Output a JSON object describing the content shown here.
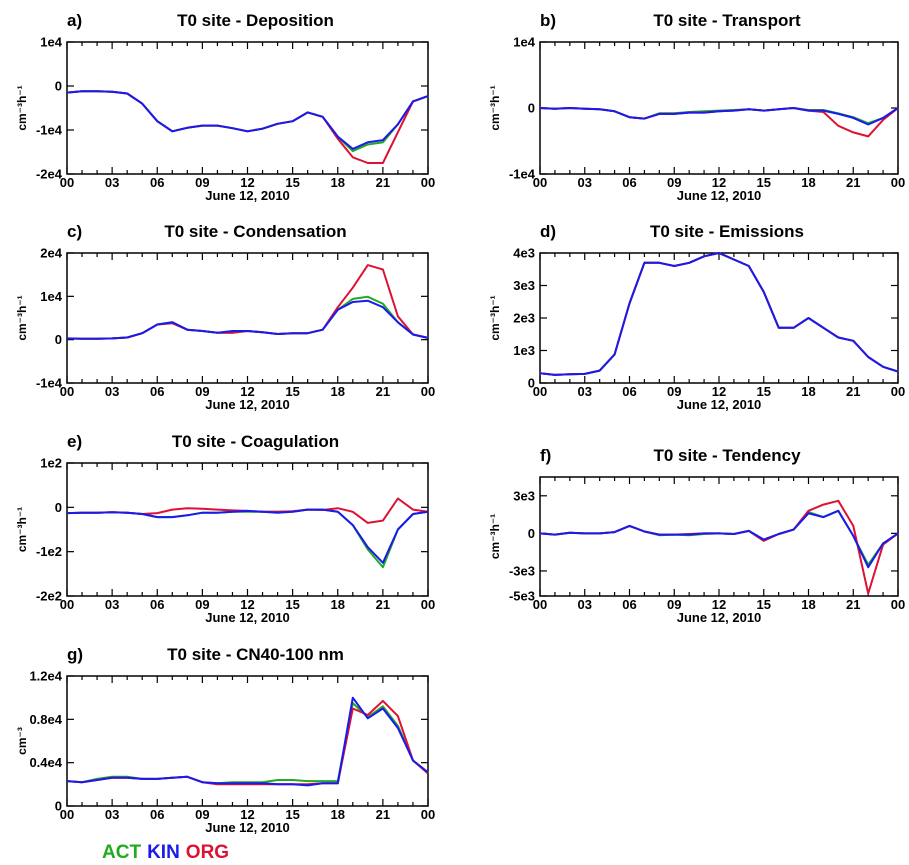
{
  "colors": {
    "ACT": "#22aa22",
    "KIN": "#1a1aee",
    "ORG": "#dd1133"
  },
  "legend": [
    {
      "key": "ACT",
      "label": "ACT"
    },
    {
      "key": "KIN",
      "label": "KIN"
    },
    {
      "key": "ORG",
      "label": "ORG"
    }
  ],
  "chart_data": [
    {
      "id": "a",
      "letter": "a)",
      "title": "T0 site - Deposition",
      "type": "line",
      "xlabel": "June 12, 2010",
      "ylabel": "cm⁻³h⁻¹",
      "xticks": [
        "00",
        "03",
        "06",
        "09",
        "12",
        "15",
        "18",
        "21",
        "00"
      ],
      "xlim": [
        0,
        24
      ],
      "ylim": [
        -20000,
        10000
      ],
      "yticks": [
        {
          "v": 10000,
          "label": "1e4"
        },
        {
          "v": 0,
          "label": "0"
        },
        {
          "v": -10000,
          "label": "-1e4"
        },
        {
          "v": -20000,
          "label": "-2e4"
        }
      ],
      "x": [
        0,
        1,
        2,
        3,
        4,
        5,
        6,
        7,
        8,
        9,
        10,
        11,
        12,
        13,
        14,
        15,
        16,
        17,
        18,
        19,
        20,
        21,
        22,
        23,
        24
      ],
      "series": [
        {
          "name": "ACT",
          "values": [
            -1500,
            -1200,
            -1200,
            -1300,
            -1700,
            -4000,
            -8000,
            -10300,
            -9500,
            -9000,
            -9000,
            -9600,
            -10300,
            -9700,
            -8600,
            -8000,
            -6000,
            -7000,
            -11500,
            -14800,
            -13300,
            -12800,
            -8700,
            -3500,
            -2300
          ]
        },
        {
          "name": "KIN",
          "values": [
            -1500,
            -1200,
            -1200,
            -1300,
            -1700,
            -4000,
            -8000,
            -10300,
            -9500,
            -9000,
            -9000,
            -9600,
            -10300,
            -9700,
            -8600,
            -8000,
            -6000,
            -7000,
            -11500,
            -14300,
            -12800,
            -12300,
            -8700,
            -3500,
            -2300
          ]
        },
        {
          "name": "ORG",
          "values": [
            -1500,
            -1200,
            -1200,
            -1300,
            -1700,
            -4000,
            -8000,
            -10300,
            -9500,
            -9000,
            -9000,
            -9600,
            -10300,
            -9700,
            -8600,
            -8000,
            -6000,
            -7000,
            -12000,
            -16200,
            -17500,
            -17500,
            -10500,
            -3500,
            -2300
          ]
        }
      ]
    },
    {
      "id": "b",
      "letter": "b)",
      "title": "T0 site - Transport",
      "type": "line",
      "xlabel": "June 12, 2010",
      "ylabel": "cm⁻³h⁻¹",
      "xticks": [
        "00",
        "03",
        "06",
        "09",
        "12",
        "15",
        "18",
        "21",
        "00"
      ],
      "xlim": [
        0,
        24
      ],
      "ylim": [
        -10000,
        10000
      ],
      "yticks": [
        {
          "v": 10000,
          "label": "1e4"
        },
        {
          "v": 0,
          "label": "0"
        },
        {
          "v": -10000,
          "label": "-1e4"
        }
      ],
      "x": [
        0,
        1,
        2,
        3,
        4,
        5,
        6,
        7,
        8,
        9,
        10,
        11,
        12,
        13,
        14,
        15,
        16,
        17,
        18,
        19,
        20,
        21,
        22,
        23,
        24
      ],
      "series": [
        {
          "name": "ACT",
          "values": [
            0,
            -100,
            0,
            -100,
            -200,
            -500,
            -1400,
            -1600,
            -800,
            -800,
            -600,
            -500,
            -400,
            -300,
            -200,
            -400,
            -200,
            0,
            -300,
            -300,
            -800,
            -1400,
            -2300,
            -1500,
            0
          ]
        },
        {
          "name": "KIN",
          "values": [
            0,
            -100,
            0,
            -100,
            -200,
            -500,
            -1400,
            -1600,
            -900,
            -900,
            -700,
            -700,
            -500,
            -400,
            -200,
            -400,
            -200,
            0,
            -400,
            -400,
            -900,
            -1500,
            -2500,
            -1500,
            0
          ]
        },
        {
          "name": "ORG",
          "values": [
            0,
            -100,
            0,
            -100,
            -200,
            -500,
            -1400,
            -1600,
            -900,
            -900,
            -700,
            -700,
            -500,
            -400,
            -200,
            -400,
            -200,
            0,
            -400,
            -600,
            -2700,
            -3700,
            -4300,
            -1800,
            0
          ]
        }
      ]
    },
    {
      "id": "c",
      "letter": "c)",
      "title": "T0 site - Condensation",
      "type": "line",
      "xlabel": "June 12, 2010",
      "ylabel": "cm⁻³h⁻¹",
      "xticks": [
        "00",
        "03",
        "06",
        "09",
        "12",
        "15",
        "18",
        "21",
        "00"
      ],
      "xlim": [
        0,
        24
      ],
      "ylim": [
        -10000,
        20000
      ],
      "yticks": [
        {
          "v": 20000,
          "label": "2e4"
        },
        {
          "v": 10000,
          "label": "1e4"
        },
        {
          "v": 0,
          "label": "0"
        },
        {
          "v": -10000,
          "label": "-1e4"
        }
      ],
      "x": [
        0,
        1,
        2,
        3,
        4,
        5,
        6,
        7,
        8,
        9,
        10,
        11,
        12,
        13,
        14,
        15,
        16,
        17,
        18,
        19,
        20,
        21,
        22,
        23,
        24
      ],
      "series": [
        {
          "name": "ACT",
          "values": [
            300,
            200,
            200,
            300,
            500,
            1500,
            3500,
            4000,
            2300,
            2000,
            1600,
            1600,
            2000,
            1700,
            1300,
            1500,
            1500,
            2300,
            6900,
            9400,
            9900,
            8300,
            4000,
            1200,
            400
          ]
        },
        {
          "name": "KIN",
          "values": [
            300,
            200,
            200,
            300,
            500,
            1500,
            3500,
            4000,
            2300,
            2000,
            1600,
            2000,
            2000,
            1700,
            1300,
            1500,
            1500,
            2300,
            6900,
            8700,
            9000,
            7500,
            4000,
            1200,
            400
          ]
        },
        {
          "name": "ORG",
          "values": [
            300,
            200,
            200,
            300,
            500,
            1500,
            3500,
            3800,
            2300,
            2000,
            1600,
            1600,
            2000,
            1700,
            1300,
            1500,
            1500,
            2300,
            7500,
            12000,
            17200,
            16200,
            5400,
            1200,
            400
          ]
        }
      ]
    },
    {
      "id": "d",
      "letter": "d)",
      "title": "T0 site - Emissions",
      "type": "line",
      "xlabel": "June 12, 2010",
      "ylabel": "cm⁻³h⁻¹",
      "xticks": [
        "00",
        "03",
        "06",
        "09",
        "12",
        "15",
        "18",
        "21",
        "00"
      ],
      "xlim": [
        0,
        24
      ],
      "ylim": [
        0,
        4000
      ],
      "yticks": [
        {
          "v": 4000,
          "label": "4e3"
        },
        {
          "v": 3000,
          "label": "3e3"
        },
        {
          "v": 2000,
          "label": "2e3"
        },
        {
          "v": 1000,
          "label": "1e3"
        },
        {
          "v": 0,
          "label": "0"
        }
      ],
      "x": [
        0,
        1,
        2,
        3,
        4,
        5,
        6,
        7,
        8,
        9,
        10,
        11,
        12,
        13,
        14,
        15,
        16,
        17,
        18,
        19,
        20,
        21,
        22,
        23,
        24
      ],
      "series": [
        {
          "name": "ACT",
          "values": [
            300,
            250,
            270,
            280,
            380,
            880,
            2450,
            3700,
            3700,
            3600,
            3700,
            3900,
            4000,
            3800,
            3600,
            2800,
            1700,
            1700,
            2000,
            1700,
            1400,
            1300,
            800,
            500,
            350
          ]
        },
        {
          "name": "KIN",
          "values": [
            300,
            250,
            270,
            280,
            380,
            880,
            2450,
            3700,
            3700,
            3600,
            3700,
            3900,
            4000,
            3800,
            3600,
            2800,
            1700,
            1700,
            2000,
            1700,
            1400,
            1300,
            800,
            500,
            350
          ]
        },
        {
          "name": "ORG",
          "values": [
            300,
            250,
            270,
            280,
            380,
            880,
            2450,
            3700,
            3700,
            3600,
            3700,
            3900,
            4000,
            3800,
            3600,
            2800,
            1700,
            1700,
            2000,
            1700,
            1400,
            1300,
            800,
            500,
            350
          ]
        }
      ]
    },
    {
      "id": "e",
      "letter": "e)",
      "title": "T0 site - Coagulation",
      "type": "line",
      "xlabel": "June 12, 2010",
      "ylabel": "cm⁻³h⁻¹",
      "xticks": [
        "00",
        "03",
        "06",
        "09",
        "12",
        "15",
        "18",
        "21",
        "00"
      ],
      "xlim": [
        0,
        24
      ],
      "ylim": [
        -200,
        100
      ],
      "yticks": [
        {
          "v": 100,
          "label": "1e2"
        },
        {
          "v": 0,
          "label": "0"
        },
        {
          "v": -100,
          "label": "-1e2"
        },
        {
          "v": -200,
          "label": "-2e2"
        }
      ],
      "x": [
        0,
        1,
        2,
        3,
        4,
        5,
        6,
        7,
        8,
        9,
        10,
        11,
        12,
        13,
        14,
        15,
        16,
        17,
        18,
        19,
        20,
        21,
        22,
        23,
        24
      ],
      "series": [
        {
          "name": "ACT",
          "values": [
            -13,
            -12,
            -12,
            -11,
            -12,
            -15,
            -22,
            -22,
            -18,
            -12,
            -12,
            -10,
            -10,
            -10,
            -10,
            -10,
            -5,
            -5,
            -10,
            -40,
            -95,
            -135,
            -50,
            -15,
            -10
          ]
        },
        {
          "name": "KIN",
          "values": [
            -13,
            -12,
            -12,
            -11,
            -12,
            -15,
            -22,
            -22,
            -18,
            -12,
            -12,
            -10,
            -8,
            -10,
            -12,
            -10,
            -5,
            -5,
            -10,
            -40,
            -90,
            -125,
            -50,
            -15,
            -10
          ]
        },
        {
          "name": "ORG",
          "values": [
            -13,
            -12,
            -12,
            -11,
            -12,
            -15,
            -13,
            -5,
            -2,
            -3,
            -5,
            -7,
            -8,
            -10,
            -10,
            -9,
            -5,
            -6,
            -2,
            -10,
            -35,
            -30,
            20,
            -5,
            -10
          ]
        }
      ]
    },
    {
      "id": "f",
      "letter": "f)",
      "title": "T0 site - Tendency",
      "type": "line",
      "xlabel": "June 12, 2010",
      "ylabel": "cm⁻³h⁻¹",
      "xticks": [
        "00",
        "03",
        "06",
        "09",
        "12",
        "15",
        "18",
        "21",
        "00"
      ],
      "xlim": [
        0,
        24
      ],
      "ylim": [
        -5000,
        4500
      ],
      "yticks": [
        {
          "v": 3000,
          "label": "3e3"
        },
        {
          "v": 0,
          "label": "0"
        },
        {
          "v": -3000,
          "label": "-3e3"
        },
        {
          "v": -5000,
          "label": "-5e3"
        }
      ],
      "x": [
        0,
        1,
        2,
        3,
        4,
        5,
        6,
        7,
        8,
        9,
        10,
        11,
        12,
        13,
        14,
        15,
        16,
        17,
        18,
        19,
        20,
        21,
        22,
        23,
        24
      ],
      "series": [
        {
          "name": "ACT",
          "values": [
            0,
            -100,
            50,
            0,
            0,
            100,
            600,
            150,
            -150,
            -100,
            -150,
            -50,
            0,
            -50,
            200,
            -500,
            -50,
            300,
            1700,
            1300,
            1800,
            -200,
            -2500,
            -800,
            0
          ]
        },
        {
          "name": "KIN",
          "values": [
            0,
            -100,
            50,
            0,
            0,
            100,
            600,
            150,
            -100,
            -100,
            -100,
            0,
            0,
            -50,
            200,
            -500,
            -50,
            300,
            1600,
            1300,
            1800,
            -200,
            -2700,
            -800,
            0
          ]
        },
        {
          "name": "ORG",
          "values": [
            0,
            -100,
            50,
            0,
            0,
            100,
            600,
            150,
            -100,
            -100,
            -50,
            0,
            0,
            -50,
            200,
            -600,
            -50,
            300,
            1800,
            2300,
            2600,
            600,
            -4800,
            -900,
            0
          ]
        }
      ]
    },
    {
      "id": "g",
      "letter": "g)",
      "title": "T0 site - CN40-100 nm",
      "type": "line",
      "xlabel": "June 12, 2010",
      "ylabel": "cm⁻³",
      "xticks": [
        "00",
        "03",
        "06",
        "09",
        "12",
        "15",
        "18",
        "21",
        "00"
      ],
      "xlim": [
        0,
        24
      ],
      "ylim": [
        0,
        12000
      ],
      "yticks": [
        {
          "v": 12000,
          "label": "1.2e4"
        },
        {
          "v": 8000,
          "label": "0.8e4"
        },
        {
          "v": 4000,
          "label": "0.4e4"
        },
        {
          "v": 0,
          "label": "0"
        }
      ],
      "x": [
        0,
        1,
        2,
        3,
        4,
        5,
        6,
        7,
        8,
        9,
        10,
        11,
        12,
        13,
        14,
        15,
        16,
        17,
        18,
        19,
        20,
        21,
        22,
        23,
        24
      ],
      "series": [
        {
          "name": "ACT",
          "values": [
            2300,
            2200,
            2500,
            2700,
            2700,
            2500,
            2500,
            2600,
            2700,
            2200,
            2100,
            2200,
            2200,
            2200,
            2400,
            2400,
            2300,
            2300,
            2300,
            9500,
            8200,
            9200,
            7400,
            4200,
            3100
          ]
        },
        {
          "name": "KIN",
          "values": [
            2300,
            2200,
            2400,
            2600,
            2600,
            2500,
            2500,
            2600,
            2700,
            2200,
            2100,
            2100,
            2100,
            2100,
            2000,
            2000,
            1900,
            2100,
            2100,
            10000,
            8100,
            9000,
            7200,
            4200,
            3100
          ]
        },
        {
          "name": "ORG",
          "values": [
            2300,
            2200,
            2400,
            2600,
            2600,
            2500,
            2500,
            2600,
            2700,
            2200,
            2000,
            2000,
            2000,
            2000,
            2000,
            2000,
            2000,
            2100,
            2100,
            9000,
            8400,
            9700,
            8300,
            4200,
            3000
          ]
        }
      ]
    }
  ]
}
